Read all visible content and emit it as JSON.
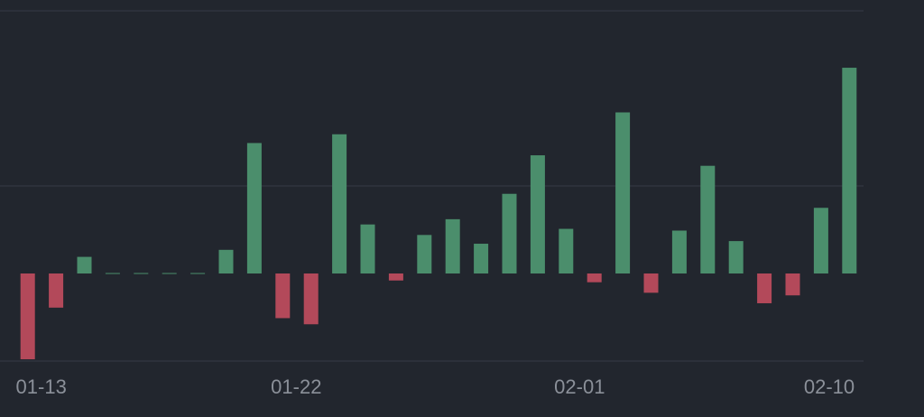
{
  "chart_data": {
    "type": "bar",
    "categories": [
      "01-13",
      null,
      null,
      null,
      null,
      null,
      null,
      null,
      null,
      "01-22",
      null,
      null,
      null,
      null,
      null,
      null,
      null,
      null,
      null,
      "02-01",
      null,
      null,
      null,
      null,
      null,
      null,
      null,
      null,
      "02-10",
      null
    ],
    "values": [
      -0.98,
      -0.39,
      0.19,
      0,
      0,
      0,
      0,
      0.27,
      1.49,
      -0.51,
      -0.58,
      1.59,
      0.56,
      -0.08,
      0.44,
      0.62,
      0.34,
      0.91,
      1.35,
      0.51,
      -0.1,
      1.84,
      -0.22,
      0.49,
      1.23,
      0.37,
      -0.34,
      -0.25,
      0.75,
      2.35
    ],
    "positive_color": "#4b8e6c",
    "negative_color": "#b3495a",
    "ylim": [
      -1,
      3
    ],
    "yticks": [
      -1,
      1,
      3
    ],
    "grid": true
  }
}
